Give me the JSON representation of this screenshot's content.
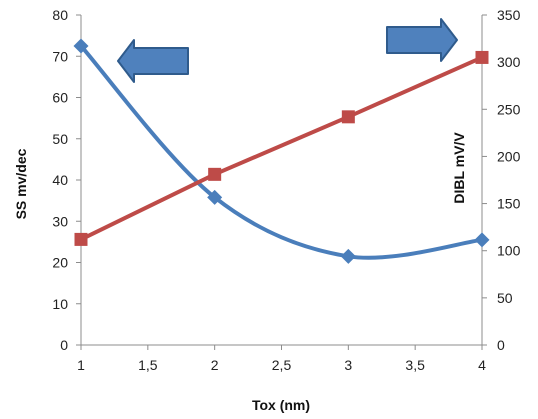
{
  "chart_data": {
    "type": "line",
    "x": [
      1,
      2,
      3,
      4
    ],
    "xlabel": "Tox (nm)",
    "ylabel_left": "SS mv/dec",
    "ylabel_right": "DIBL mV/V",
    "x_ticks": [
      "1",
      "1,5",
      "2",
      "2,5",
      "3",
      "3,5",
      "4"
    ],
    "y_left_ticks": [
      "0",
      "10",
      "20",
      "30",
      "40",
      "50",
      "60",
      "70",
      "80"
    ],
    "y_right_ticks": [
      "0",
      "50",
      "100",
      "150",
      "200",
      "250",
      "300",
      "350"
    ],
    "xlim": [
      1,
      4
    ],
    "ylim_left": [
      0,
      80
    ],
    "ylim_right": [
      0,
      350
    ],
    "grid": false,
    "legend": "none",
    "series": [
      {
        "axis": "left",
        "color": "#4a7ebb",
        "marker": "diamond",
        "smooth": true,
        "values": [
          72.5,
          35.8,
          21.5,
          25.5
        ]
      },
      {
        "axis": "right",
        "color": "#be4b48",
        "marker": "square",
        "smooth": false,
        "values": [
          112,
          181,
          242,
          305
        ]
      }
    ],
    "annotations": [
      {
        "shape": "arrow",
        "direction": "left",
        "points_to": "left-axis",
        "color": "#4f81bd"
      },
      {
        "shape": "arrow",
        "direction": "right",
        "points_to": "right-axis",
        "color": "#4f81bd"
      }
    ]
  }
}
